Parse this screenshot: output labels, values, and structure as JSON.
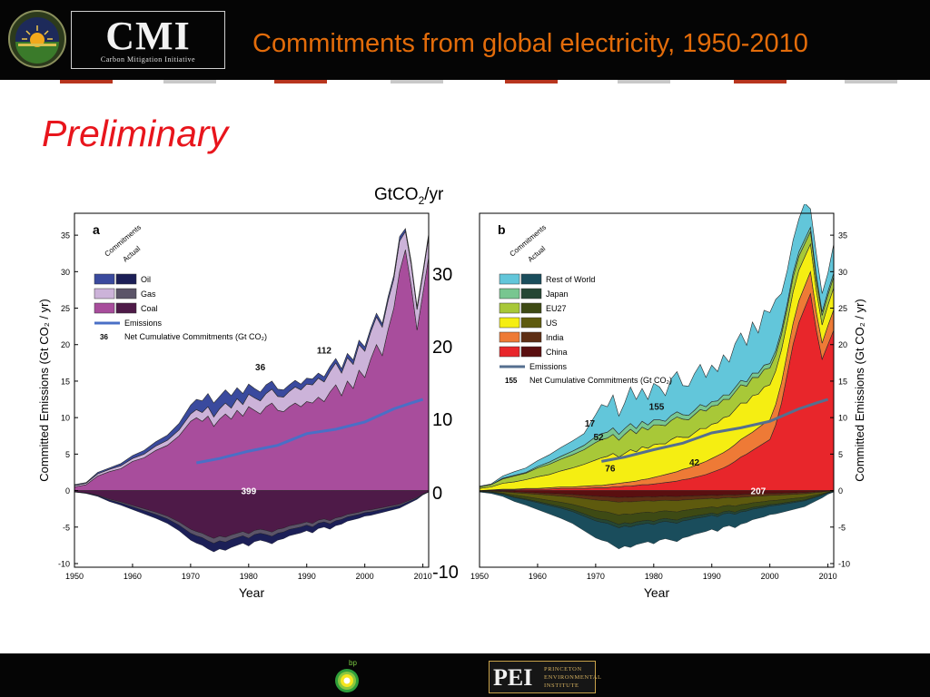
{
  "header": {
    "logo_letters": "CMI",
    "logo_subtitle": "Carbon Mitigation Initiative",
    "title": "Commitments from global electricity, 1950-2010",
    "colors": {
      "title": "#e36c0a",
      "background": "#050505"
    }
  },
  "slide": {
    "label": "Preliminary",
    "label_color": "#e8151c",
    "unit_label_main": "GtCO",
    "unit_label_sub": "2",
    "unit_label_tail": "/yr",
    "unit_ticks": [
      "30",
      "20",
      "10",
      "0",
      "-10"
    ]
  },
  "footer": {
    "bp_text": "bp",
    "pei_letters": "PEI",
    "pei_lines": [
      "PRINCETON",
      "ENVIRONMENTAL",
      "INSTITUTE"
    ]
  },
  "chart_data": [
    {
      "type": "area",
      "panel": "a",
      "xlabel": "Year",
      "ylabel": "Committed Emissions (Gt CO₂ / yr)",
      "xlim": [
        1950,
        2011
      ],
      "ylim": [
        -10.5,
        38
      ],
      "xticks": [
        "1950",
        "1960",
        "1970",
        "1980",
        "1990",
        "2000",
        "2010"
      ],
      "yticks": [
        "35",
        "30",
        "25",
        "20",
        "15",
        "10",
        "5",
        "0",
        "-5",
        "-10"
      ],
      "x": [
        1950,
        1952,
        1954,
        1956,
        1958,
        1960,
        1962,
        1964,
        1966,
        1968,
        1970,
        1971,
        1972,
        1973,
        1974,
        1975,
        1976,
        1977,
        1978,
        1979,
        1980,
        1981,
        1982,
        1983,
        1984,
        1985,
        1986,
        1987,
        1988,
        1989,
        1990,
        1991,
        1992,
        1993,
        1994,
        1995,
        1996,
        1997,
        1998,
        1999,
        2000,
        2001,
        2002,
        2003,
        2004,
        2005,
        2006,
        2007,
        2008,
        2009,
        2010,
        2011
      ],
      "series": [
        {
          "name": "Coal",
          "values": [
            0.5,
            0.8,
            2.0,
            2.6,
            3.0,
            4.0,
            4.5,
            5.5,
            6.2,
            7.5,
            9.5,
            10.0,
            9.5,
            10.2,
            8.8,
            9.8,
            10.5,
            9.8,
            11.0,
            10.2,
            11.5,
            11.0,
            10.5,
            11.5,
            12.0,
            11.0,
            10.8,
            11.5,
            12.0,
            11.5,
            12.2,
            12.0,
            12.8,
            12.2,
            13.5,
            14.5,
            13.0,
            15.0,
            14.0,
            16.5,
            15.5,
            18.0,
            20.0,
            18.5,
            22.0,
            25.0,
            30.0,
            33.0,
            28.0,
            22.0,
            27.0,
            32.0
          ]
        },
        {
          "name": "Gas",
          "values": [
            0.2,
            0.2,
            0.3,
            0.3,
            0.4,
            0.4,
            0.5,
            0.6,
            0.7,
            0.8,
            1.0,
            1.1,
            1.2,
            1.3,
            1.3,
            1.4,
            1.5,
            1.5,
            1.6,
            1.6,
            1.7,
            1.7,
            1.8,
            1.8,
            1.9,
            1.9,
            2.0,
            2.1,
            2.2,
            2.3,
            2.4,
            2.5,
            2.6,
            2.7,
            2.8,
            3.0,
            3.1,
            3.2,
            3.3,
            3.5,
            3.6,
            3.7,
            3.8,
            3.9,
            4.0,
            4.0,
            4.2,
            2.5,
            3.0,
            2.8,
            2.6,
            2.8
          ]
        },
        {
          "name": "Oil",
          "values": [
            0.1,
            0.1,
            0.2,
            0.2,
            0.3,
            0.4,
            0.5,
            0.6,
            0.7,
            0.9,
            1.2,
            1.4,
            1.6,
            1.8,
            1.9,
            1.7,
            1.8,
            1.7,
            1.5,
            1.5,
            1.4,
            1.3,
            1.2,
            1.2,
            1.1,
            1.0,
            1.0,
            0.9,
            0.9,
            0.8,
            0.8,
            0.8,
            0.7,
            0.7,
            0.7,
            0.6,
            0.6,
            0.6,
            0.6,
            0.6,
            0.6,
            0.5,
            0.5,
            0.5,
            0.5,
            0.5,
            0.6,
            0.4,
            0.4,
            0.4,
            0.4,
            0.4
          ]
        }
      ],
      "negative_series": [
        {
          "name": "Actual (all fuels)",
          "values": [
            -0.2,
            -0.4,
            -0.8,
            -1.5,
            -2.0,
            -2.6,
            -3.2,
            -3.8,
            -4.5,
            -5.5,
            -6.8,
            -7.2,
            -7.5,
            -8.0,
            -8.4,
            -8.0,
            -8.2,
            -7.8,
            -7.5,
            -7.2,
            -7.6,
            -7.0,
            -6.8,
            -7.0,
            -7.3,
            -6.8,
            -6.6,
            -6.2,
            -6.0,
            -5.8,
            -5.5,
            -5.8,
            -5.2,
            -5.0,
            -5.3,
            -4.8,
            -4.6,
            -4.2,
            -4.0,
            -3.8,
            -3.5,
            -3.4,
            -3.2,
            -3.0,
            -2.8,
            -2.6,
            -2.4,
            -2.0,
            -1.6,
            -1.2,
            -0.6,
            -0.2
          ]
        }
      ],
      "emissions_line": {
        "name": "Emissions",
        "x": [
          1971,
          1975,
          1980,
          1985,
          1990,
          1995,
          2000,
          2005,
          2008,
          2010
        ],
        "values": [
          3.8,
          4.4,
          5.4,
          6.2,
          7.8,
          8.4,
          9.4,
          11.2,
          12.0,
          12.5
        ]
      },
      "annotations": [
        {
          "text": "399",
          "x": 1980,
          "y": 0
        },
        {
          "text": "36",
          "x": 1982,
          "y": 16.5
        },
        {
          "text": "112",
          "x": 1993,
          "y": 18.8
        }
      ],
      "legend_header": [
        "Commitments",
        "Actual"
      ],
      "legend": [
        "Oil",
        "Gas",
        "Coal"
      ],
      "legend_emissions": "Emissions",
      "legend_net_value": "36",
      "legend_net_label": "Net Cumulative Commitments (Gt CO₂)",
      "colors": {
        "Coal": "#a84d9c",
        "Gas": "#ccb3d9",
        "Oil": "#3a4a9e",
        "Coal_actual": "#4e1a48",
        "Gas_actual": "#5b5468",
        "Oil_actual": "#1c1f57",
        "emissions": "#4a6fc6"
      }
    },
    {
      "type": "area",
      "panel": "b",
      "xlabel": "Year",
      "ylabel": "Committed Emissions (Gt CO₂ / yr)",
      "xlim": [
        1950,
        2011
      ],
      "ylim": [
        -10.5,
        38
      ],
      "xticks": [
        "1950",
        "1960",
        "1970",
        "1980",
        "1990",
        "2000",
        "2010"
      ],
      "yticks": [
        "35",
        "30",
        "25",
        "20",
        "15",
        "10",
        "5",
        "0",
        "-5",
        "-10"
      ],
      "x": [
        1950,
        1952,
        1954,
        1956,
        1958,
        1960,
        1962,
        1964,
        1966,
        1968,
        1970,
        1971,
        1972,
        1973,
        1974,
        1975,
        1976,
        1977,
        1978,
        1979,
        1980,
        1981,
        1982,
        1983,
        1984,
        1985,
        1986,
        1987,
        1988,
        1989,
        1990,
        1991,
        1992,
        1993,
        1994,
        1995,
        1996,
        1997,
        1998,
        1999,
        2000,
        2001,
        2002,
        2003,
        2004,
        2005,
        2006,
        2007,
        2008,
        2009,
        2010,
        2011
      ],
      "series": [
        {
          "name": "China",
          "values": [
            0.0,
            0.1,
            0.1,
            0.1,
            0.2,
            0.2,
            0.2,
            0.3,
            0.3,
            0.3,
            0.4,
            0.4,
            0.4,
            0.5,
            0.5,
            0.6,
            0.6,
            0.7,
            0.8,
            0.8,
            0.9,
            1.0,
            1.1,
            1.2,
            1.3,
            1.5,
            1.6,
            1.8,
            2.0,
            2.2,
            2.5,
            2.8,
            3.1,
            3.5,
            4.0,
            4.6,
            5.0,
            5.5,
            6.0,
            6.5,
            7.0,
            9.0,
            12.0,
            16.0,
            20.0,
            23.0,
            25.0,
            27.0,
            22.0,
            18.0,
            20.0,
            22.0
          ]
        },
        {
          "name": "India",
          "values": [
            0.0,
            0.0,
            0.1,
            0.1,
            0.1,
            0.1,
            0.2,
            0.2,
            0.2,
            0.3,
            0.3,
            0.3,
            0.4,
            0.4,
            0.5,
            0.5,
            0.6,
            0.6,
            0.7,
            0.8,
            0.9,
            1.0,
            1.1,
            1.2,
            1.3,
            1.4,
            1.5,
            1.6,
            1.7,
            1.8,
            1.9,
            2.0,
            2.1,
            2.2,
            2.3,
            2.4,
            2.5,
            2.5,
            2.6,
            2.7,
            2.7,
            2.8,
            2.8,
            2.9,
            2.9,
            3.0,
            3.0,
            3.0,
            2.5,
            2.2,
            2.6,
            2.8
          ]
        },
        {
          "name": "US",
          "values": [
            0.3,
            0.4,
            0.8,
            1.0,
            1.2,
            1.6,
            1.8,
            2.2,
            2.6,
            3.0,
            3.5,
            3.8,
            3.9,
            4.2,
            3.6,
            4.0,
            4.4,
            4.0,
            4.5,
            4.2,
            4.5,
            4.4,
            4.2,
            4.6,
            4.8,
            4.4,
            4.2,
            4.5,
            4.8,
            4.5,
            4.7,
            4.5,
            4.8,
            4.5,
            4.8,
            5.0,
            4.5,
            5.0,
            4.6,
            5.0,
            4.8,
            4.6,
            4.5,
            4.2,
            4.3,
            4.2,
            4.0,
            3.8,
            3.0,
            2.5,
            2.8,
            3.0
          ]
        },
        {
          "name": "EU27",
          "values": [
            0.2,
            0.3,
            0.6,
            0.8,
            0.9,
            1.2,
            1.4,
            1.6,
            1.8,
            2.0,
            2.4,
            2.5,
            2.5,
            2.6,
            2.3,
            2.6,
            2.8,
            2.5,
            2.7,
            2.5,
            2.7,
            2.6,
            2.5,
            2.6,
            2.7,
            2.5,
            2.4,
            2.5,
            2.6,
            2.4,
            2.5,
            2.4,
            2.5,
            2.3,
            2.4,
            2.5,
            2.3,
            2.5,
            2.3,
            2.4,
            2.3,
            2.2,
            2.1,
            2.0,
            2.0,
            1.9,
            1.8,
            1.7,
            1.5,
            1.3,
            1.4,
            1.5
          ]
        },
        {
          "name": "Japan",
          "values": [
            0.0,
            0.0,
            0.1,
            0.1,
            0.1,
            0.2,
            0.3,
            0.4,
            0.5,
            0.6,
            0.8,
            0.8,
            0.8,
            0.9,
            0.8,
            0.8,
            0.8,
            0.7,
            0.8,
            0.7,
            0.7,
            0.7,
            0.6,
            0.7,
            0.7,
            0.6,
            0.6,
            0.6,
            0.7,
            0.6,
            0.6,
            0.6,
            0.6,
            0.6,
            0.6,
            0.6,
            0.6,
            0.6,
            0.6,
            0.6,
            0.6,
            0.6,
            0.6,
            0.6,
            0.6,
            0.6,
            0.6,
            0.6,
            0.5,
            0.5,
            0.5,
            0.5
          ]
        },
        {
          "name": "Rest of World",
          "values": [
            0.1,
            0.1,
            0.3,
            0.5,
            0.6,
            0.8,
            1.0,
            1.2,
            1.4,
            1.6,
            3.0,
            4.0,
            3.5,
            4.5,
            2.5,
            3.5,
            5.0,
            4.0,
            4.5,
            3.5,
            5.0,
            4.5,
            3.5,
            5.0,
            5.5,
            4.0,
            4.0,
            5.0,
            5.5,
            4.0,
            5.0,
            4.0,
            5.5,
            4.5,
            6.0,
            6.5,
            5.0,
            7.0,
            5.5,
            7.5,
            7.0,
            7.0,
            5.0,
            4.5,
            4.5,
            4.5,
            5.0,
            2.5,
            3.0,
            2.5,
            2.5,
            4.0
          ]
        }
      ],
      "negative_series": [
        {
          "name": "Actual (all regions)",
          "values": [
            -0.2,
            -0.4,
            -0.8,
            -1.5,
            -2.0,
            -2.6,
            -3.2,
            -3.8,
            -4.5,
            -5.5,
            -6.5,
            -6.8,
            -7.0,
            -7.5,
            -8.0,
            -7.6,
            -7.8,
            -7.4,
            -7.2,
            -7.0,
            -7.3,
            -6.8,
            -6.6,
            -6.8,
            -7.0,
            -6.5,
            -6.3,
            -6.0,
            -5.8,
            -5.6,
            -5.3,
            -5.6,
            -5.0,
            -4.8,
            -5.1,
            -4.6,
            -4.4,
            -4.0,
            -3.8,
            -3.6,
            -3.3,
            -3.2,
            -3.0,
            -2.8,
            -2.6,
            -2.4,
            -2.2,
            -1.8,
            -1.4,
            -1.0,
            -0.5,
            -0.2
          ]
        }
      ],
      "emissions_line": {
        "name": "Emissions",
        "x": [
          1971,
          1975,
          1980,
          1985,
          1990,
          1995,
          2000,
          2005,
          2008,
          2010
        ],
        "values": [
          4.0,
          4.6,
          5.6,
          6.5,
          7.9,
          8.6,
          9.5,
          11.2,
          12.0,
          12.5
        ]
      },
      "annotations": [
        {
          "text": "207",
          "x": 1998,
          "y": 0
        },
        {
          "text": "17",
          "x": 1969,
          "y": 8.8
        },
        {
          "text": "52",
          "x": 1970.5,
          "y": 6.9
        },
        {
          "text": "155",
          "x": 1980.5,
          "y": 11.1
        },
        {
          "text": "76",
          "x": 1972.5,
          "y": 2.6
        },
        {
          "text": "42",
          "x": 1987,
          "y": 3.4
        }
      ],
      "legend_header": [
        "Commitments",
        "Actual"
      ],
      "legend": [
        "Rest of World",
        "Japan",
        "EU27",
        "US",
        "India",
        "China"
      ],
      "legend_emissions": "Emissions",
      "legend_net_value": "155",
      "legend_net_label": "Net Cumulative Commitments (Gt CO₂)",
      "colors": {
        "China": "#e8262b",
        "India": "#ee7a36",
        "US": "#f5ee12",
        "EU27": "#a8c838",
        "Japan": "#78c690",
        "Rest of World": "#62c6da",
        "China_actual": "#5a0f10",
        "India_actual": "#5e2e14",
        "US_actual": "#5e5a0e",
        "EU27_actual": "#3e4a14",
        "Japan_actual": "#254634",
        "Rest of World_actual": "#1a4d5c",
        "emissions": "#556f8f"
      }
    }
  ]
}
